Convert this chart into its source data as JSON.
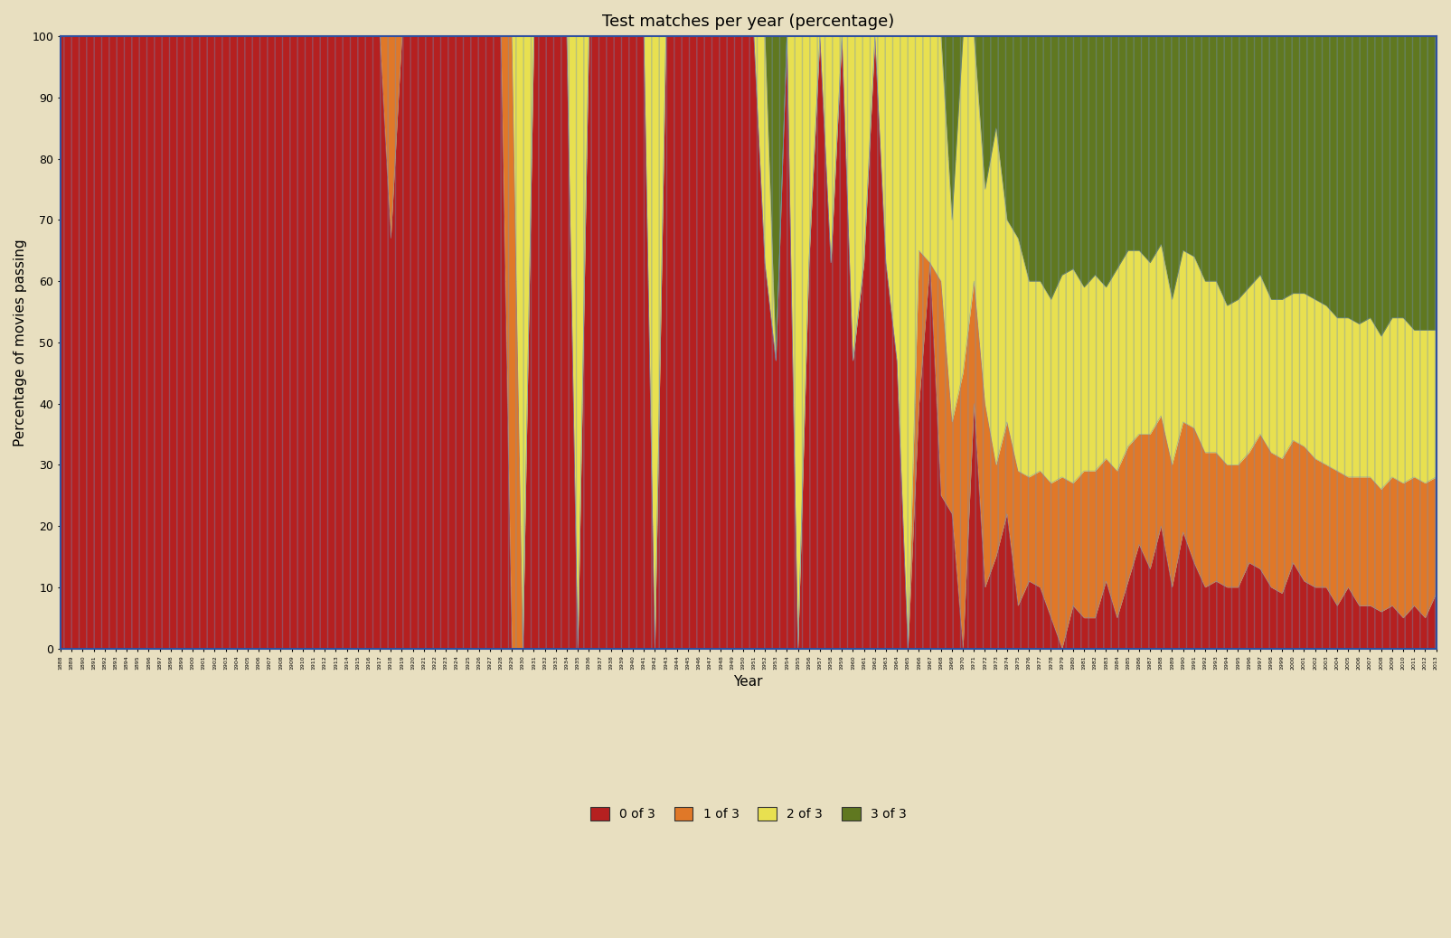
{
  "title": "Test matches per year (percentage)",
  "xlabel": "Year",
  "ylabel": "Percentage of movies passing",
  "background_color": "#e8dfc0",
  "colors_0of3": "#b52020",
  "colors_1of3": "#e07828",
  "colors_2of3": "#e8e050",
  "colors_3of3": "#607820",
  "hatch_color": "#7090b8",
  "spine_color": "#3050a0",
  "ylim": [
    0,
    100
  ],
  "yticks": [
    0,
    10,
    20,
    30,
    40,
    50,
    60,
    70,
    80,
    90,
    100
  ],
  "p0": [
    100,
    100,
    100,
    100,
    100,
    100,
    100,
    100,
    100,
    100,
    100,
    100,
    100,
    100,
    100,
    100,
    100,
    100,
    100,
    100,
    100,
    100,
    100,
    100,
    100,
    100,
    100,
    100,
    100,
    100,
    67,
    100,
    100,
    100,
    100,
    100,
    100,
    100,
    100,
    100,
    100,
    0,
    0,
    100,
    100,
    100,
    100,
    0,
    100,
    100,
    100,
    100,
    100,
    100,
    0,
    100,
    100,
    100,
    100,
    100,
    100,
    100,
    100,
    100,
    63,
    47,
    100,
    0,
    63,
    100,
    63,
    100,
    47,
    63,
    100,
    63,
    47,
    0,
    40,
    63,
    25,
    22,
    0,
    40,
    10,
    15,
    22,
    7,
    11,
    10,
    5,
    0,
    7,
    5,
    5,
    11,
    5,
    11,
    17,
    13,
    20,
    10,
    19,
    14,
    10,
    11,
    10,
    10,
    14,
    13,
    10,
    9,
    14,
    11,
    10,
    10,
    7,
    10,
    7,
    7,
    6,
    7,
    5,
    7,
    5,
    9
  ],
  "p1": [
    0,
    0,
    0,
    0,
    0,
    0,
    0,
    0,
    0,
    0,
    0,
    0,
    0,
    0,
    0,
    0,
    0,
    0,
    0,
    0,
    0,
    0,
    0,
    0,
    0,
    0,
    0,
    0,
    0,
    0,
    33,
    0,
    0,
    0,
    0,
    0,
    0,
    0,
    0,
    0,
    0,
    100,
    0,
    0,
    0,
    0,
    0,
    0,
    0,
    0,
    0,
    0,
    0,
    0,
    0,
    0,
    0,
    0,
    0,
    0,
    0,
    0,
    0,
    0,
    0,
    0,
    0,
    0,
    0,
    0,
    0,
    0,
    0,
    0,
    0,
    0,
    0,
    0,
    25,
    0,
    35,
    15,
    45,
    20,
    30,
    15,
    15,
    22,
    17,
    19,
    22,
    28,
    20,
    24,
    24,
    20,
    24,
    22,
    18,
    22,
    18,
    20,
    18,
    22,
    22,
    21,
    20,
    20,
    18,
    22,
    22,
    22,
    20,
    22,
    21,
    20,
    22,
    18,
    21,
    21,
    20,
    21,
    22,
    21,
    22,
    19
  ],
  "p2": [
    0,
    0,
    0,
    0,
    0,
    0,
    0,
    0,
    0,
    0,
    0,
    0,
    0,
    0,
    0,
    0,
    0,
    0,
    0,
    0,
    0,
    0,
    0,
    0,
    0,
    0,
    0,
    0,
    0,
    0,
    0,
    0,
    0,
    0,
    0,
    0,
    0,
    0,
    0,
    0,
    0,
    0,
    100,
    0,
    0,
    0,
    0,
    100,
    0,
    0,
    0,
    0,
    0,
    0,
    100,
    0,
    0,
    0,
    0,
    0,
    0,
    0,
    0,
    0,
    37,
    0,
    0,
    100,
    37,
    0,
    37,
    0,
    53,
    37,
    0,
    37,
    53,
    100,
    35,
    37,
    40,
    33,
    55,
    40,
    35,
    55,
    33,
    38,
    32,
    31,
    30,
    33,
    35,
    30,
    32,
    28,
    33,
    32,
    30,
    28,
    28,
    27,
    28,
    28,
    28,
    28,
    26,
    27,
    27,
    26,
    25,
    26,
    24,
    25,
    26,
    26,
    25,
    26,
    25,
    26,
    25,
    26,
    27,
    24,
    25,
    24
  ],
  "p3": [
    0,
    0,
    0,
    0,
    0,
    0,
    0,
    0,
    0,
    0,
    0,
    0,
    0,
    0,
    0,
    0,
    0,
    0,
    0,
    0,
    0,
    0,
    0,
    0,
    0,
    0,
    0,
    0,
    0,
    0,
    0,
    0,
    0,
    0,
    0,
    0,
    0,
    0,
    0,
    0,
    0,
    0,
    0,
    0,
    0,
    0,
    0,
    0,
    0,
    0,
    0,
    0,
    0,
    0,
    0,
    0,
    0,
    0,
    0,
    0,
    0,
    0,
    0,
    0,
    0,
    53,
    0,
    0,
    0,
    0,
    0,
    0,
    0,
    0,
    0,
    0,
    0,
    0,
    0,
    0,
    0,
    30,
    0,
    0,
    25,
    15,
    30,
    33,
    40,
    40,
    43,
    39,
    38,
    41,
    39,
    41,
    38,
    35,
    35,
    37,
    34,
    43,
    35,
    36,
    40,
    40,
    44,
    43,
    41,
    39,
    43,
    43,
    42,
    42,
    43,
    44,
    46,
    46,
    47,
    46,
    49,
    46,
    46,
    48,
    48,
    48
  ]
}
